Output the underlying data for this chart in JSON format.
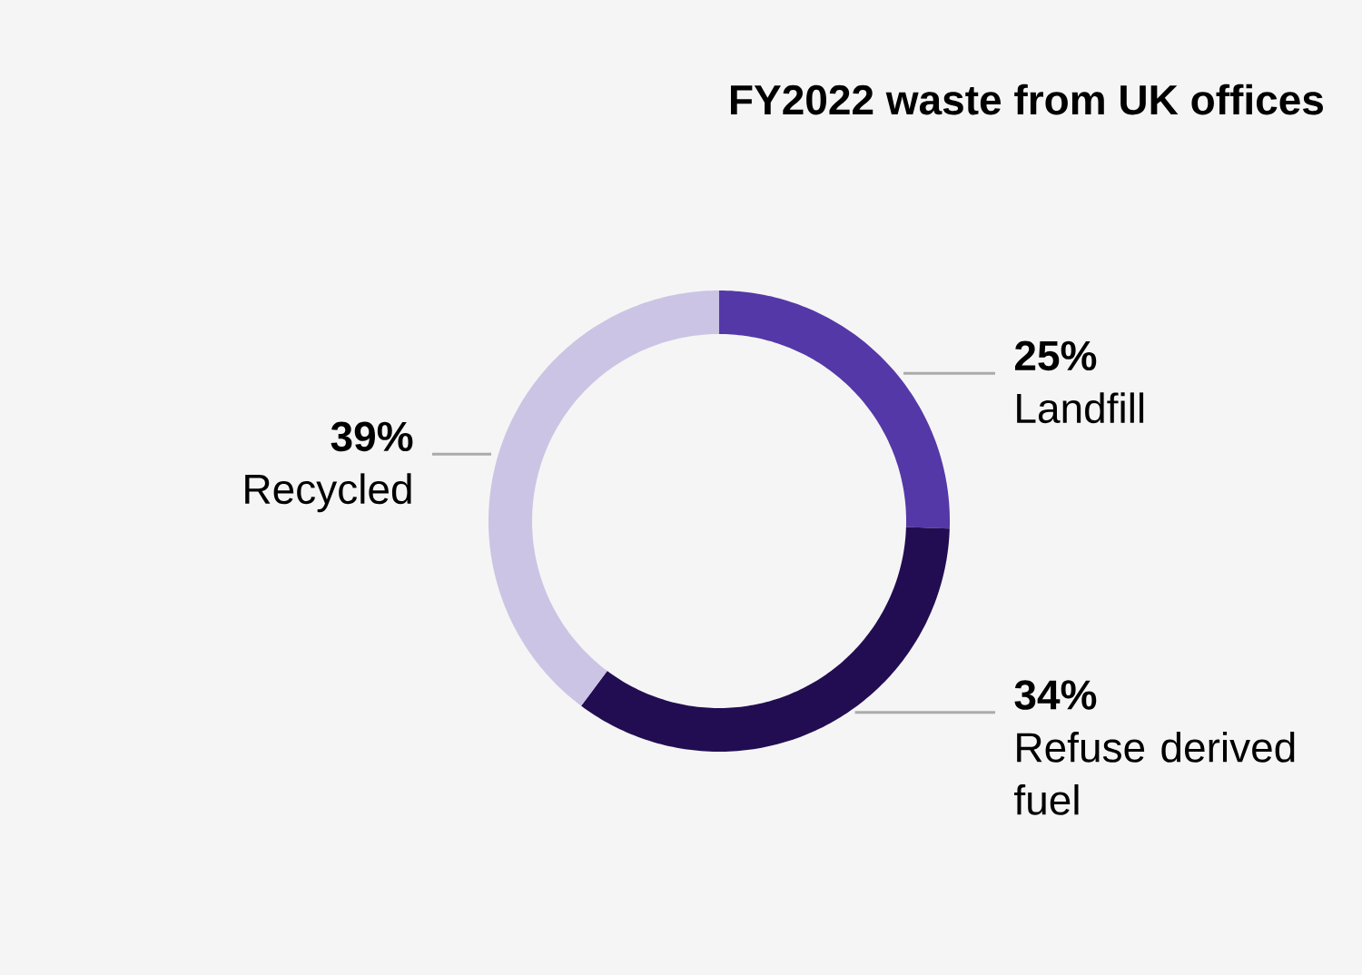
{
  "chart_data": {
    "type": "donut",
    "title": "FY2022 waste from UK offices",
    "categories": [
      "Landfill",
      "Refuse derived fuel",
      "Recycled"
    ],
    "values": [
      25,
      34,
      39
    ],
    "value_labels": [
      "25%",
      "34%",
      "39%"
    ],
    "colors": [
      "#5438a8",
      "#220d52",
      "#cbc4e4"
    ]
  }
}
